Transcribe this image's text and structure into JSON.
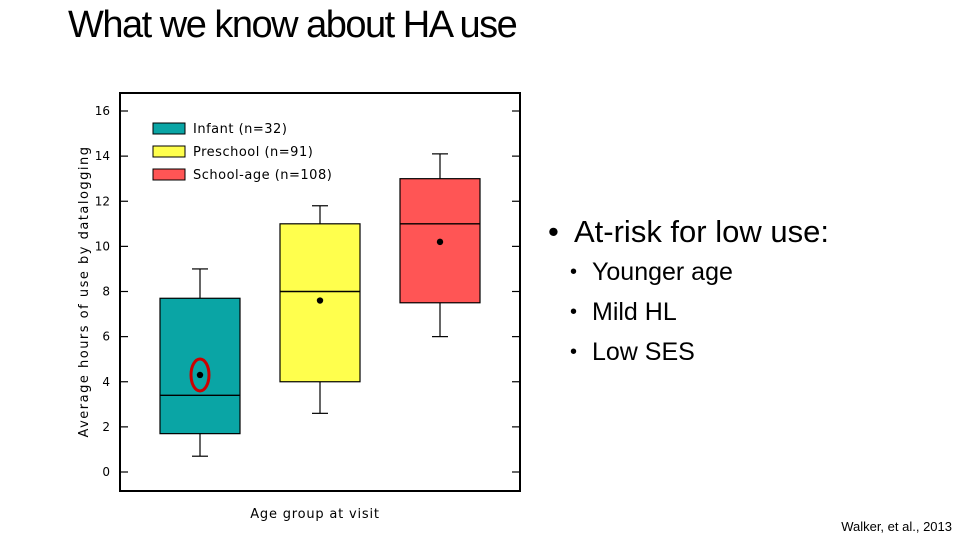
{
  "slide": {
    "title": "What we know about HA use",
    "bullets": [
      {
        "text": "At-risk for low use:",
        "level": 1
      },
      {
        "text": "Younger age",
        "level": 2
      },
      {
        "text": "Mild HL",
        "level": 2
      },
      {
        "text": "Low SES",
        "level": 2
      }
    ],
    "citation": "Walker, et al., 2013"
  },
  "chart_data": {
    "type": "box",
    "xlabel": "Age group at visit",
    "ylabel": "Average hours of use by datalogging",
    "ylim": [
      0,
      16
    ],
    "yticks": [
      0,
      2,
      4,
      6,
      8,
      10,
      12,
      14,
      16
    ],
    "legend_position": "top-left",
    "series": [
      {
        "name": "Infant (n=32)",
        "color": "#0aa5a5",
        "whisker_low": 0.7,
        "q1": 1.7,
        "median": 3.4,
        "q3": 7.7,
        "whisker_high": 9.0,
        "mean": 4.3,
        "highlighted_mean": true
      },
      {
        "name": "Preschool (n=91)",
        "color": "#ffff4d",
        "whisker_low": 2.6,
        "q1": 4.0,
        "median": 8.0,
        "q3": 11.0,
        "whisker_high": 11.8,
        "mean": 7.6,
        "highlighted_mean": false
      },
      {
        "name": "School-age (n=108)",
        "color": "#ff5555",
        "whisker_low": 6.0,
        "q1": 7.5,
        "median": 11.0,
        "q3": 13.0,
        "whisker_high": 14.1,
        "mean": 10.2,
        "highlighted_mean": false
      }
    ],
    "highlight_color": "#cc0000"
  }
}
